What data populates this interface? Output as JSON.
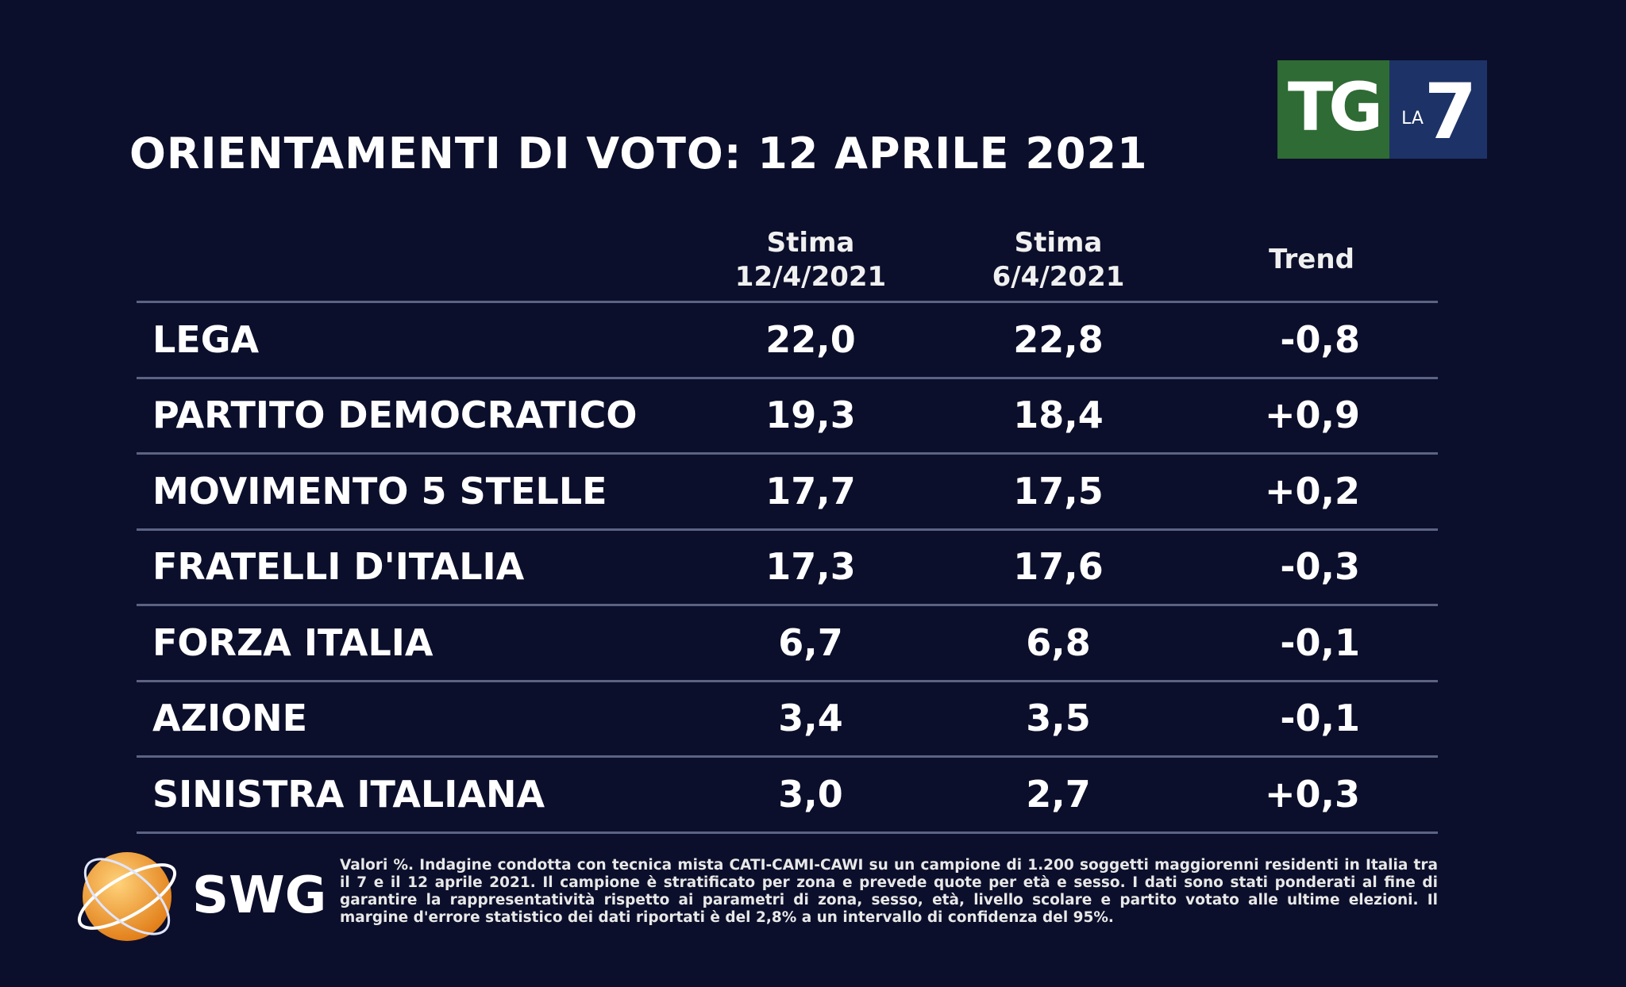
{
  "header": {
    "title": "ORIENTAMENTI DI VOTO: 12 APRILE 2021",
    "logo": {
      "tg": "TG",
      "la": "LA",
      "seven": "7"
    }
  },
  "table": {
    "columns": [
      {
        "line1": "Stima",
        "line2": "12/4/2021"
      },
      {
        "line1": "Stima",
        "line2": "6/4/2021"
      },
      {
        "line1": "Trend"
      }
    ],
    "rows": [
      [
        "LEGA",
        "22,0",
        "22,8",
        "-0,8"
      ],
      [
        "PARTITO DEMOCRATICO",
        "19,3",
        "18,4",
        "+0,9"
      ],
      [
        "MOVIMENTO 5 STELLE",
        "17,7",
        "17,5",
        "+0,2"
      ],
      [
        "FRATELLI D'ITALIA",
        "17,3",
        "17,6",
        "-0,3"
      ],
      [
        "FORZA ITALIA",
        "6,7",
        "6,8",
        "-0,1"
      ],
      [
        "AZIONE",
        "3,4",
        "3,5",
        "-0,1"
      ],
      [
        "SINISTRA ITALIANA",
        "3,0",
        "2,7",
        "+0,3"
      ]
    ]
  },
  "footer": {
    "brand": "SWG",
    "note": "Valori %. Indagine condotta con tecnica mista CATI-CAMI-CAWI su un campione di 1.200 soggetti maggiorenni residenti in Italia tra il 7 e il 12 aprile 2021. Il campione è stratificato per zona e prevede quote per età e sesso. I dati sono stati ponderati al fine di garantire la rappresentatività rispetto ai parametri di zona, sesso, età, livello scolare e partito votato alle ultime elezioni. Il margine d'errore statistico dei dati riportati è del 2,8% a un intervallo di confidenza del 95%."
  }
}
